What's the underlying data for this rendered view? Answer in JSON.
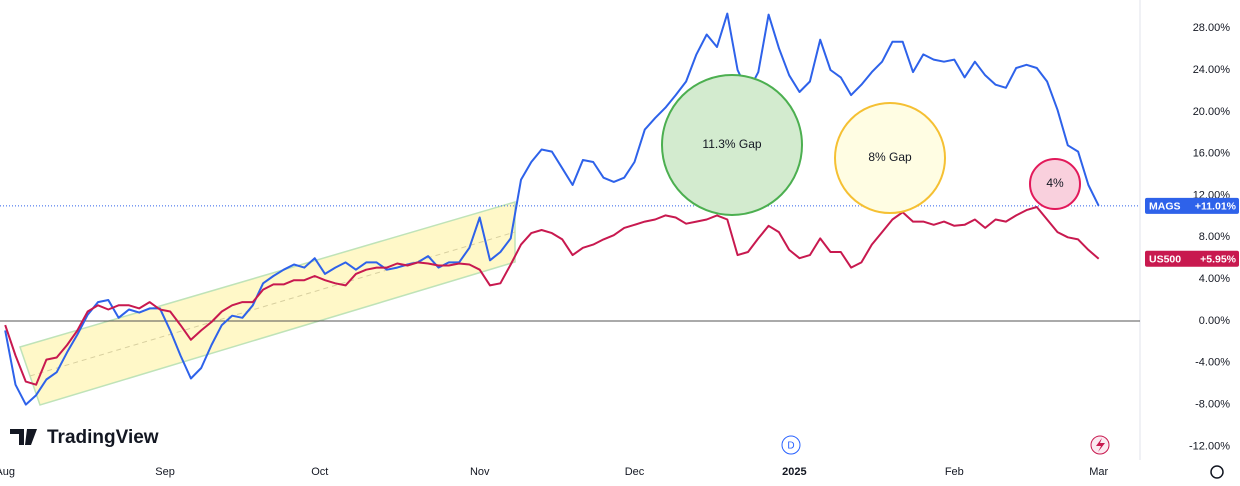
{
  "chart_data": {
    "type": "line",
    "watermark": "TradingView",
    "event_marker": "D",
    "annotations": [
      "11.3% Gap",
      "8% Gap",
      "4%"
    ],
    "x": [
      0,
      2,
      4,
      6,
      8,
      10,
      12,
      14,
      16,
      18,
      20,
      22,
      24,
      26,
      28,
      30,
      32,
      34,
      36,
      38,
      40,
      42,
      44,
      46,
      48,
      50,
      52,
      54,
      56,
      58,
      60,
      62,
      64,
      66,
      68,
      70,
      72,
      74,
      76,
      78,
      80,
      82,
      84,
      86,
      88,
      90,
      92,
      94,
      96,
      98,
      100,
      102,
      104,
      106,
      108,
      110,
      112,
      114,
      116,
      118,
      120,
      122,
      124,
      126,
      128,
      130,
      132,
      134,
      136,
      138,
      140,
      142,
      144,
      146,
      148,
      150,
      152,
      154,
      156,
      158,
      160,
      162,
      164,
      166,
      168,
      170,
      172,
      174,
      176,
      178,
      180,
      182,
      184,
      186,
      188,
      190,
      192,
      194,
      196,
      198,
      200,
      202,
      204,
      206,
      208,
      210,
      212
    ],
    "series": [
      {
        "name": "MAGS",
        "color": "#2e62ea",
        "last_label": "+11.01%",
        "values": [
          -0.9,
          -6.1,
          -8.0,
          -7.1,
          -5.6,
          -4.9,
          -3.0,
          -1.3,
          0.6,
          1.8,
          2.0,
          0.3,
          1.1,
          0.8,
          1.2,
          1.2,
          -0.9,
          -3.3,
          -5.5,
          -4.5,
          -2.3,
          -0.4,
          0.5,
          0.3,
          1.5,
          3.6,
          4.3,
          4.9,
          5.4,
          5.1,
          6.0,
          4.5,
          5.1,
          5.6,
          4.9,
          5.6,
          5.6,
          4.9,
          5.1,
          5.4,
          5.6,
          6.2,
          5.1,
          5.6,
          5.6,
          7.0,
          9.9,
          5.8,
          6.6,
          7.9,
          13.5,
          15.2,
          16.4,
          16.2,
          14.6,
          13.0,
          15.4,
          15.2,
          13.7,
          13.3,
          13.7,
          15.2,
          18.3,
          19.4,
          20.4,
          21.6,
          22.9,
          25.5,
          27.4,
          26.2,
          29.4,
          24.0,
          21.9,
          23.8,
          29.3,
          26.1,
          23.5,
          21.9,
          22.9,
          26.9,
          24.0,
          23.3,
          21.6,
          22.6,
          23.8,
          24.8,
          26.7,
          26.7,
          23.8,
          25.5,
          25.0,
          24.8,
          25.0,
          23.3,
          24.8,
          23.5,
          22.6,
          22.3,
          24.2,
          24.5,
          24.2,
          22.9,
          20.2,
          16.8,
          16.2,
          13.0,
          11.01
        ]
      },
      {
        "name": "US500",
        "color": "#c8194f",
        "last_label": "+5.95%",
        "values": [
          -0.4,
          -3.3,
          -5.8,
          -6.1,
          -3.7,
          -3.5,
          -2.3,
          -0.9,
          0.9,
          1.5,
          1.1,
          1.5,
          1.5,
          1.2,
          1.8,
          1.1,
          0.9,
          -0.4,
          -1.8,
          -0.9,
          -0.1,
          0.9,
          1.5,
          1.8,
          1.8,
          3.0,
          3.5,
          3.5,
          3.9,
          3.9,
          4.3,
          3.9,
          3.6,
          3.4,
          4.5,
          4.9,
          5.1,
          5.1,
          5.5,
          5.3,
          5.6,
          5.5,
          5.3,
          5.3,
          5.5,
          5.4,
          4.9,
          3.4,
          3.6,
          5.4,
          7.3,
          8.4,
          8.7,
          8.4,
          7.8,
          6.3,
          7.0,
          7.3,
          7.8,
          8.2,
          8.9,
          9.2,
          9.5,
          9.7,
          10.1,
          9.9,
          9.3,
          9.5,
          9.7,
          10.1,
          9.7,
          6.3,
          6.6,
          7.9,
          9.1,
          8.5,
          6.8,
          6.0,
          6.3,
          7.9,
          6.6,
          6.6,
          5.1,
          5.6,
          7.3,
          8.5,
          9.7,
          10.4,
          9.5,
          9.5,
          9.2,
          9.5,
          9.1,
          9.2,
          9.7,
          8.9,
          9.7,
          9.5,
          10.1,
          10.6,
          10.9,
          9.7,
          8.5,
          8.0,
          7.8,
          6.8,
          5.95
        ]
      }
    ],
    "xlim": [
      -1,
      220
    ],
    "xticks": [
      {
        "value": 0,
        "label": "Aug"
      },
      {
        "value": 31,
        "label": "Sep"
      },
      {
        "value": 61,
        "label": "Oct"
      },
      {
        "value": 92,
        "label": "Nov"
      },
      {
        "value": 122,
        "label": "Dec"
      },
      {
        "value": 153,
        "label": "2025"
      },
      {
        "value": 184,
        "label": "Feb"
      },
      {
        "value": 212,
        "label": "Mar"
      }
    ],
    "ylim": [
      -13.3,
      30.7
    ],
    "yticks": [
      {
        "value": -12,
        "label": "-12.00%"
      },
      {
        "value": -8,
        "label": "-8.00%"
      },
      {
        "value": -4,
        "label": "-4.00%"
      },
      {
        "value": 0,
        "label": "0.00%"
      },
      {
        "value": 4,
        "label": "4.00%"
      },
      {
        "value": 8,
        "label": "8.00%"
      },
      {
        "value": 12,
        "label": "12.00%"
      },
      {
        "value": 16,
        "label": "16.00%"
      },
      {
        "value": 20,
        "label": "20.00%"
      },
      {
        "value": 24,
        "label": "24.00%"
      },
      {
        "value": 28,
        "label": "28.00%"
      }
    ],
    "grid": false
  }
}
